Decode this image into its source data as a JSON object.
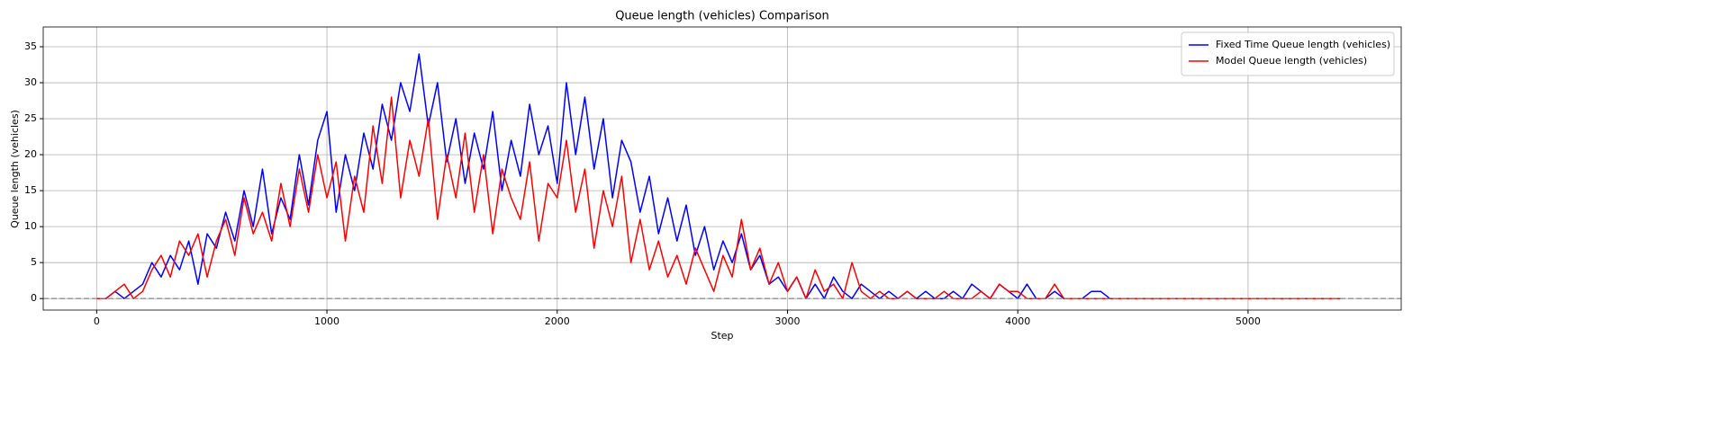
{
  "chart_data": {
    "type": "line",
    "title": "Queue length (vehicles) Comparison",
    "xlabel": "Step",
    "ylabel": "Queue length (vehicles)",
    "x": [
      0,
      40,
      80,
      120,
      160,
      200,
      240,
      280,
      320,
      360,
      400,
      440,
      480,
      520,
      560,
      600,
      640,
      680,
      720,
      760,
      800,
      840,
      880,
      920,
      960,
      1000,
      1040,
      1080,
      1120,
      1160,
      1200,
      1240,
      1280,
      1320,
      1360,
      1400,
      1440,
      1480,
      1520,
      1560,
      1600,
      1640,
      1680,
      1720,
      1760,
      1800,
      1840,
      1880,
      1920,
      1960,
      2000,
      2040,
      2080,
      2120,
      2160,
      2200,
      2240,
      2280,
      2320,
      2360,
      2400,
      2440,
      2480,
      2520,
      2560,
      2600,
      2640,
      2680,
      2720,
      2760,
      2800,
      2840,
      2880,
      2920,
      2960,
      3000,
      3040,
      3080,
      3120,
      3160,
      3200,
      3240,
      3280,
      3320,
      3360,
      3400,
      3440,
      3480,
      3520,
      3560,
      3600,
      3640,
      3680,
      3720,
      3760,
      3800,
      3840,
      3880,
      3920,
      3960,
      4000,
      4040,
      4080,
      4120,
      4160,
      4200,
      4240,
      4280,
      4320,
      4360,
      4400,
      4440,
      4480,
      4520,
      4560,
      4600,
      4640,
      4680,
      4720,
      4760,
      4800,
      4840,
      4880,
      4920,
      4960,
      5000,
      5040,
      5080,
      5120,
      5160,
      5200,
      5240,
      5280,
      5320,
      5360,
      5400
    ],
    "series": [
      {
        "name": "Fixed Time Queue length (vehicles)",
        "color": "#0000ff",
        "values": [
          0,
          0,
          1,
          0,
          1,
          2,
          5,
          3,
          6,
          4,
          8,
          2,
          9,
          7,
          12,
          8,
          15,
          10,
          18,
          9,
          14,
          11,
          20,
          13,
          22,
          26,
          12,
          20,
          15,
          23,
          18,
          27,
          22,
          30,
          26,
          34,
          24,
          30,
          19,
          25,
          16,
          23,
          18,
          26,
          15,
          22,
          17,
          27,
          20,
          24,
          16,
          30,
          20,
          28,
          18,
          25,
          14,
          22,
          19,
          12,
          17,
          9,
          14,
          8,
          13,
          6,
          10,
          4,
          8,
          5,
          9,
          4,
          6,
          2,
          3,
          1,
          3,
          0,
          2,
          0,
          3,
          1,
          0,
          2,
          1,
          0,
          1,
          0,
          1,
          0,
          1,
          0,
          0,
          1,
          0,
          2,
          1,
          0,
          2,
          1,
          0,
          2,
          0,
          0,
          1,
          0,
          0,
          0,
          1,
          1,
          0,
          0,
          0,
          0,
          0,
          0,
          0,
          0,
          0,
          0,
          0,
          0,
          0,
          0,
          0,
          0,
          0,
          0,
          0,
          0,
          0,
          0,
          0,
          0,
          0,
          0
        ]
      },
      {
        "name": "Model Queue length (vehicles)",
        "color": "#ff0000",
        "values": [
          0,
          0,
          1,
          2,
          0,
          1,
          4,
          6,
          3,
          8,
          6,
          9,
          3,
          8,
          11,
          6,
          14,
          9,
          12,
          8,
          16,
          10,
          18,
          12,
          20,
          14,
          19,
          8,
          17,
          12,
          24,
          16,
          28,
          14,
          22,
          17,
          25,
          11,
          20,
          14,
          23,
          12,
          20,
          9,
          18,
          14,
          11,
          19,
          8,
          16,
          14,
          22,
          12,
          18,
          7,
          15,
          10,
          17,
          5,
          11,
          4,
          8,
          3,
          6,
          2,
          7,
          4,
          1,
          6,
          3,
          11,
          4,
          7,
          2,
          5,
          1,
          3,
          0,
          4,
          1,
          2,
          0,
          5,
          1,
          0,
          1,
          0,
          0,
          1,
          0,
          0,
          0,
          1,
          0,
          0,
          0,
          1,
          0,
          2,
          1,
          1,
          0,
          0,
          0,
          2,
          0,
          0,
          0,
          0,
          0,
          0,
          0,
          0,
          0,
          0,
          0,
          0,
          0,
          0,
          0,
          0,
          0,
          0,
          0,
          0,
          0,
          0,
          0,
          0,
          0,
          0,
          0,
          0,
          0,
          0,
          0
        ]
      }
    ],
    "hline": 0,
    "xlim": [
      -232,
      5665
    ],
    "ylim": [
      -1.6,
      37.75
    ],
    "xticks": [
      0,
      1000,
      2000,
      3000,
      4000,
      5000
    ],
    "yticks": [
      0,
      5,
      10,
      15,
      20,
      25,
      30,
      35
    ],
    "grid": true,
    "legend": "upper right"
  }
}
